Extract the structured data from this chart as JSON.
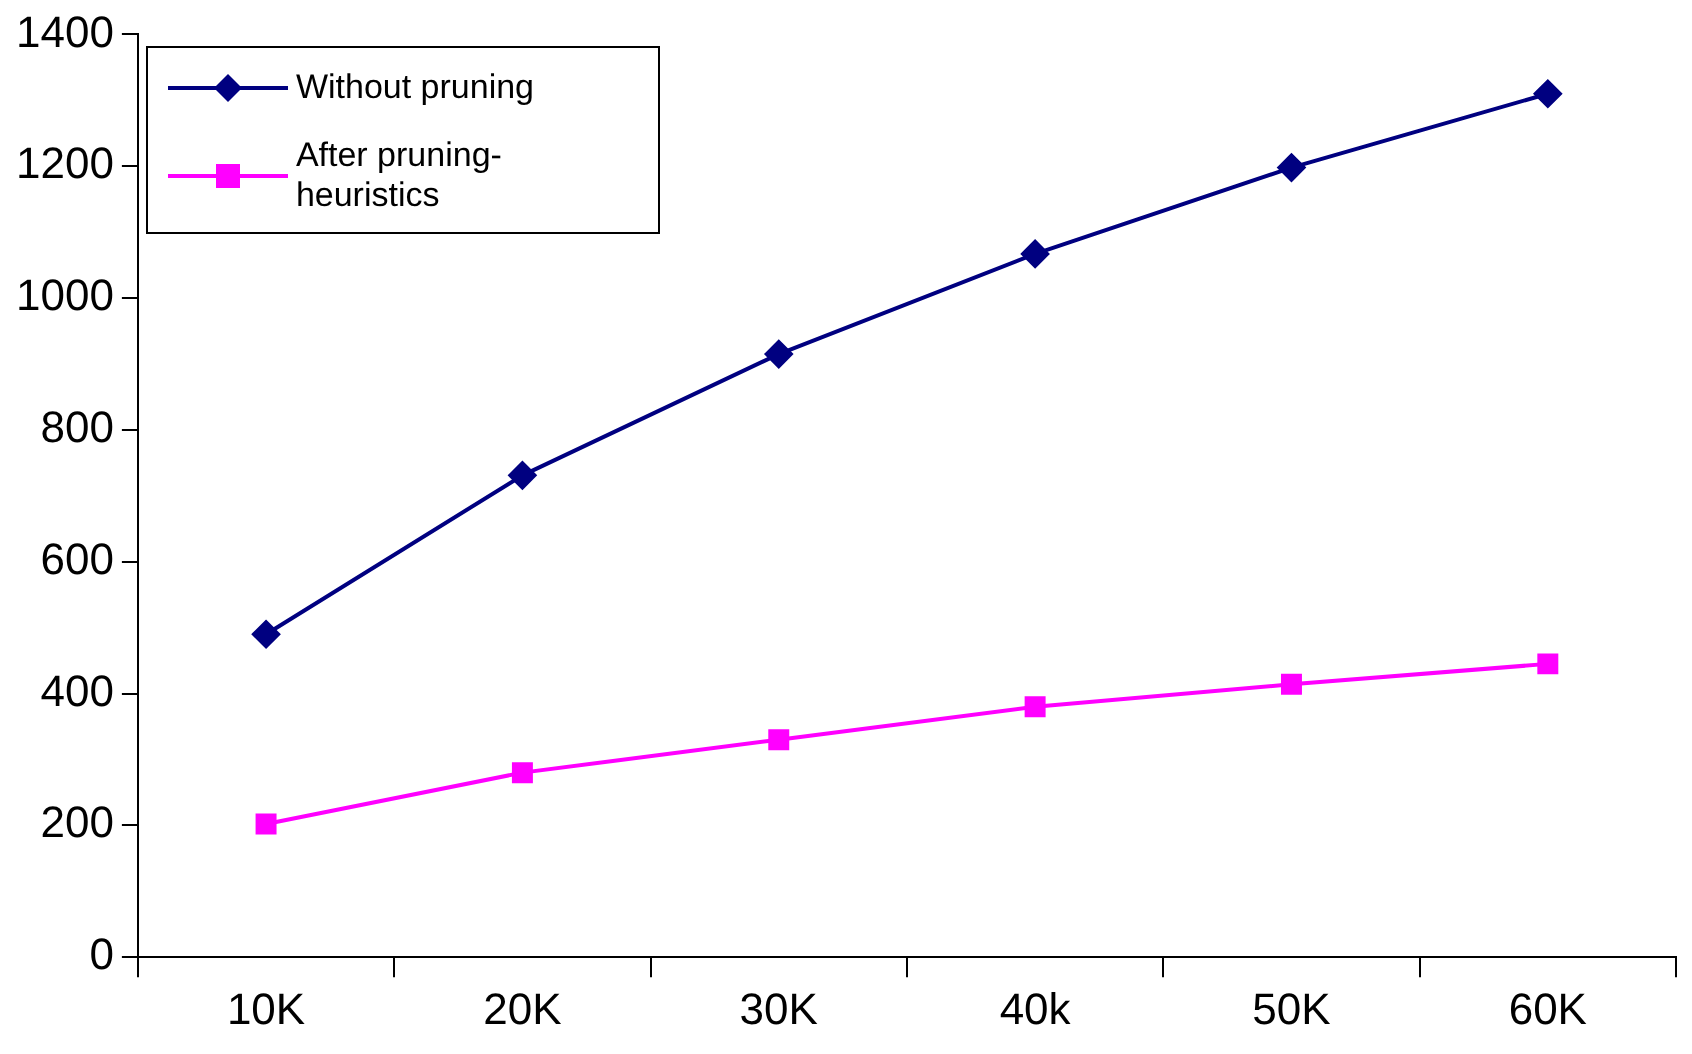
{
  "chart_data": {
    "type": "line",
    "categories": [
      "10K",
      "20K",
      "30K",
      "40k",
      "50K",
      "60K"
    ],
    "series": [
      {
        "name": "Without pruning",
        "color": "#000080",
        "marker": "diamond",
        "values": [
          490,
          731,
          915,
          1067,
          1198,
          1310
        ]
      },
      {
        "name": "After pruning-heuristics",
        "color": "#ff00ff",
        "marker": "square",
        "values": [
          202,
          280,
          330,
          380,
          414,
          445
        ]
      }
    ],
    "ylim": [
      0,
      1400
    ],
    "yticks": [
      0,
      200,
      400,
      600,
      800,
      1000,
      1200,
      1400
    ],
    "grid": false,
    "legend": "top left",
    "line_style": "solid"
  }
}
